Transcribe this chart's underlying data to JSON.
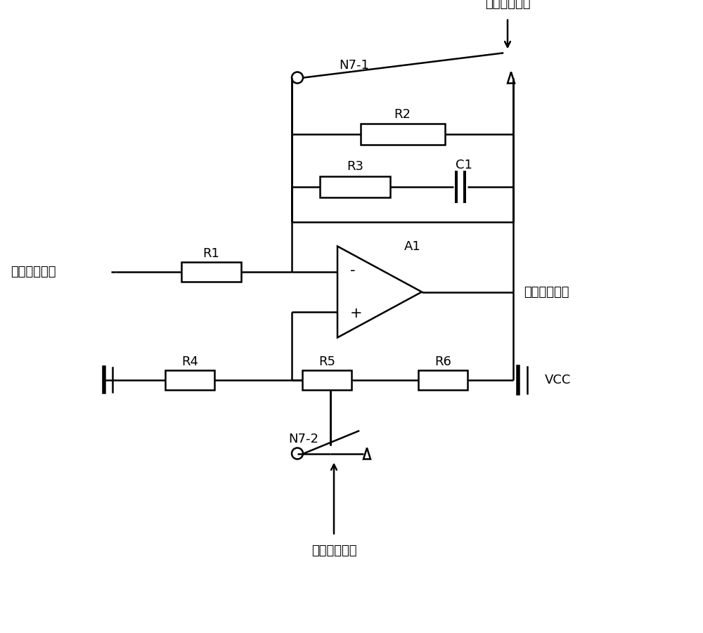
{
  "background_color": "#ffffff",
  "line_color": "#000000",
  "line_width": 1.8,
  "font_size": 13,
  "fig_width": 10.0,
  "fig_height": 9.01,
  "labels": {
    "main_input": "主鉴相器输出",
    "vco_output": "至压控振荡器",
    "lock_signal_top": "锁定指示信号",
    "lock_signal_bottom": "锁定指示信号",
    "R1": "R1",
    "R2": "R2",
    "R3": "R3",
    "R4": "R4",
    "R5": "R5",
    "R6": "R6",
    "C1": "C1",
    "A1": "A1",
    "N71": "N7-1",
    "N72": "N7-2",
    "VCC": "VCC",
    "minus": "-",
    "plus": "+"
  }
}
